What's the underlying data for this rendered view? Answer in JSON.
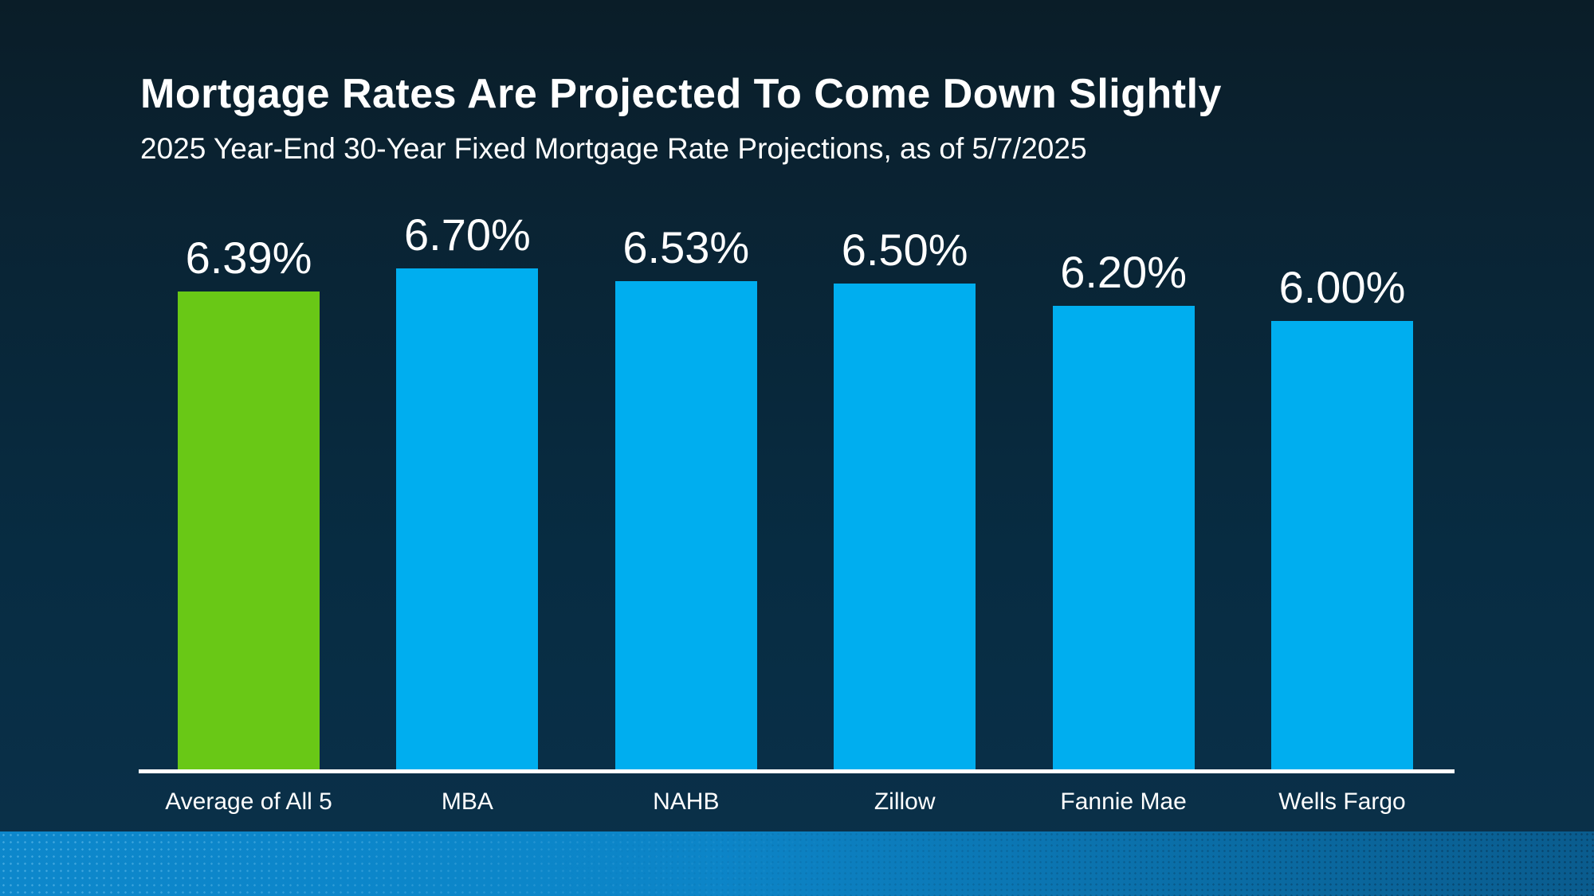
{
  "chart_data": {
    "type": "bar",
    "title": "Mortgage Rates Are Projected To Come Down Slightly",
    "subtitle": "2025 Year-End 30-Year Fixed Mortgage Rate Projections, as of 5/7/2025",
    "categories": [
      "Average of All 5",
      "MBA",
      "NAHB",
      "Zillow",
      "Fannie Mae",
      "Wells Fargo"
    ],
    "values": [
      6.39,
      6.7,
      6.53,
      6.5,
      6.2,
      6.0
    ],
    "data_labels": [
      "6.39%",
      "6.70%",
      "6.53%",
      "6.50%",
      "6.20%",
      "6.00%"
    ],
    "ylim": [
      0,
      7
    ],
    "grid": false,
    "legend": false,
    "y_axis_visible": false,
    "highlight_index": 0,
    "colors": {
      "highlight_bar": "#69c816",
      "bar": "#00aeef",
      "label_text": "#ffffff",
      "axis_line": "#ffffff"
    }
  },
  "theme": {
    "background_top": "#0a1d28",
    "background_bottom": "#0a3049",
    "footer_band_left": "#0d87cb",
    "footer_band_right": "#0a5c8e",
    "text": "#ffffff"
  }
}
